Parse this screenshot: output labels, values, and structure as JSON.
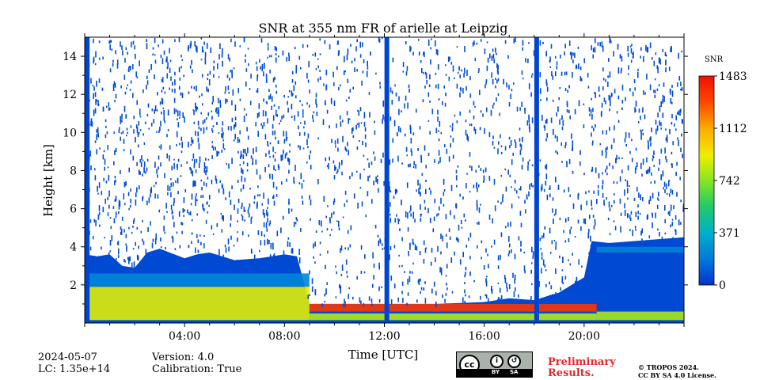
{
  "chart_data": {
    "type": "heatmap",
    "title": "SNR at 355 nm FR of arielle at Leipzig",
    "xlabel": "Time [UTC]",
    "ylabel": "Height [km]",
    "xlim_hours": [
      0,
      24
    ],
    "ylim_km": [
      0,
      15
    ],
    "x_ticks": [
      {
        "value": 4,
        "label": "04:00"
      },
      {
        "value": 8,
        "label": "08:00"
      },
      {
        "value": 12,
        "label": "12:00"
      },
      {
        "value": 16,
        "label": "16:00"
      },
      {
        "value": 20,
        "label": "20:00"
      }
    ],
    "y_ticks": [
      {
        "value": 2,
        "label": "2"
      },
      {
        "value": 4,
        "label": "4"
      },
      {
        "value": 6,
        "label": "6"
      },
      {
        "value": 8,
        "label": "8"
      },
      {
        "value": 10,
        "label": "10"
      },
      {
        "value": 12,
        "label": "12"
      },
      {
        "value": 14,
        "label": "14"
      }
    ],
    "colorbar": {
      "label": "SNR",
      "min": 0,
      "max": 1483,
      "ticks": [
        {
          "value": 0,
          "label": "0"
        },
        {
          "value": 371,
          "label": "371"
        },
        {
          "value": 742,
          "label": "742"
        },
        {
          "value": 1112,
          "label": "1112"
        },
        {
          "value": 1483,
          "label": "1483"
        }
      ],
      "colors": [
        "#0033cc",
        "#0077dd",
        "#00b0c8",
        "#22cc66",
        "#88e622",
        "#eeee00",
        "#ffaa00",
        "#ff4400",
        "#ee1100"
      ]
    },
    "full_column_profiles_hours": [
      0.1,
      12.1,
      18.1
    ],
    "boundary_layer_top_km": [
      [
        0,
        3.6
      ],
      [
        0.5,
        3.5
      ],
      [
        1,
        3.6
      ],
      [
        1.5,
        3.0
      ],
      [
        2,
        2.9
      ],
      [
        2.5,
        3.7
      ],
      [
        3,
        3.9
      ],
      [
        4,
        3.4
      ],
      [
        4.5,
        3.6
      ],
      [
        5,
        3.7
      ],
      [
        6,
        3.3
      ],
      [
        7,
        3.4
      ],
      [
        8,
        3.6
      ],
      [
        8.5,
        3.5
      ],
      [
        9,
        1.0
      ],
      [
        10,
        1.0
      ],
      [
        12,
        1.0
      ],
      [
        14,
        1.0
      ],
      [
        16,
        1.1
      ],
      [
        17,
        1.3
      ],
      [
        18,
        1.2
      ],
      [
        19,
        1.6
      ],
      [
        20,
        2.4
      ],
      [
        20.3,
        4.3
      ],
      [
        21,
        4.2
      ],
      [
        22,
        4.3
      ],
      [
        23,
        4.4
      ],
      [
        24,
        4.5
      ]
    ],
    "aerosol_layer_core": [
      {
        "t0": 0.0,
        "t1": 9.0,
        "h0": 0.15,
        "h1": 1.9,
        "snr": 900
      },
      {
        "t0": 0.0,
        "t1": 9.0,
        "h0": 1.9,
        "h1": 2.6,
        "snr": 230
      },
      {
        "t0": 9.0,
        "t1": 20.5,
        "h0": 0.15,
        "h1": 0.5,
        "snr": 820
      },
      {
        "t0": 9.0,
        "t1": 20.5,
        "h0": 0.6,
        "h1": 1.0,
        "snr": 1350
      },
      {
        "t0": 20.5,
        "t1": 24.0,
        "h0": 0.15,
        "h1": 0.6,
        "snr": 800
      },
      {
        "t0": 20.5,
        "t1": 24.0,
        "h0": 3.7,
        "h1": 4.0,
        "snr": 220
      }
    ]
  },
  "footer": {
    "date": "2024-05-07",
    "lc": "LC: 1.35e+14",
    "version": "Version: 4.0",
    "calibration": "Calibration: True",
    "preliminary_line1": "Preliminary",
    "preliminary_line2": "Results.",
    "license_line1": "© TROPOS 2024.",
    "license_line2": "CC BY SA 4.0 License.",
    "badge_cc": "cc",
    "badge_by": "BY",
    "badge_sa": "SA"
  }
}
